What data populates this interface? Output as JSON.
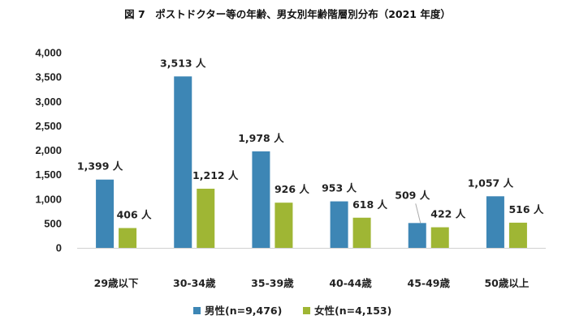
{
  "chart_data": {
    "type": "bar",
    "title": "図 7　ポストドクター等の年齢、男女別年齢階層別分布（2021 年度）",
    "categories": [
      "29歳以下",
      "30-34歳",
      "35-39歳",
      "40-44歳",
      "45-49歳",
      "50歳以上"
    ],
    "series": [
      {
        "name": "男性(n=9,476)",
        "color": "#3d86b5",
        "values": [
          1399,
          3513,
          1978,
          953,
          509,
          1057
        ],
        "labels": [
          "1,399 人",
          "3,513 人",
          "1,978 人",
          "953 人",
          "509 人",
          "1,057 人"
        ]
      },
      {
        "name": "女性(n=4,153)",
        "color": "#9fb634",
        "values": [
          406,
          1212,
          926,
          618,
          422,
          516
        ],
        "labels": [
          "406 人",
          "1,212 人",
          "926 人",
          "618 人",
          "422 人",
          "516 人"
        ]
      }
    ],
    "ylim": [
      0,
      4000
    ],
    "yticks": [
      0,
      500,
      1000,
      1500,
      2000,
      2500,
      3000,
      3500,
      4000
    ],
    "ytick_labels": [
      "0",
      "500",
      "1,000",
      "1,500",
      "2,000",
      "2,500",
      "3,000",
      "3,500",
      "4,000"
    ],
    "grid": false,
    "legend_position": "bottom"
  }
}
